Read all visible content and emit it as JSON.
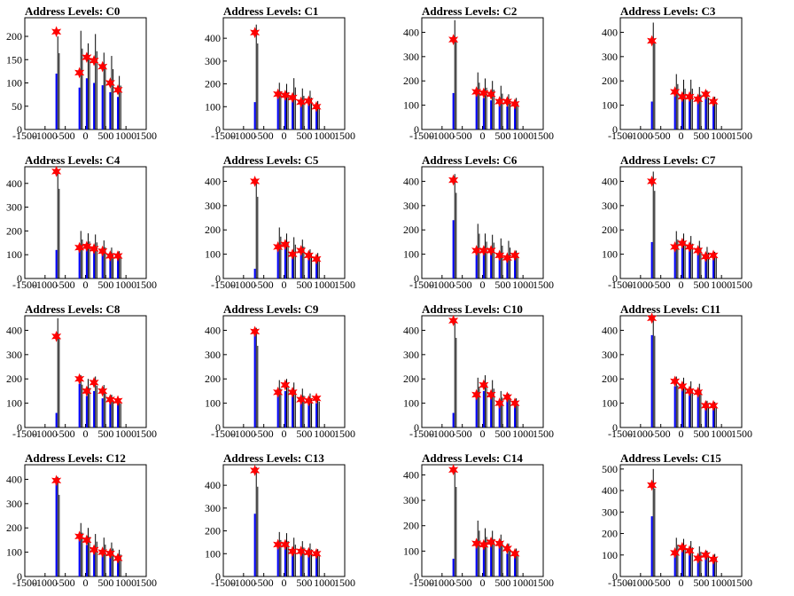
{
  "figure_title": "",
  "chart_data": [
    {
      "type": "bar",
      "title": "Address Levels: C0",
      "xlim": [
        -1500,
        1500
      ],
      "xticks": [
        -1500,
        -1000,
        -500,
        0,
        500,
        1000,
        1500
      ],
      "ymax": 240,
      "yticks": [
        0,
        50,
        100,
        150,
        200
      ],
      "peaks": [
        {
          "x": -720,
          "blue": 120,
          "black": 200,
          "star": 210
        },
        {
          "x": -150,
          "blue": 90,
          "black": 212,
          "star": 122
        },
        {
          "x": 30,
          "blue": 110,
          "black": 185,
          "star": 155
        },
        {
          "x": 210,
          "blue": 100,
          "black": 205,
          "star": 148
        },
        {
          "x": 420,
          "blue": 95,
          "black": 165,
          "star": 135
        },
        {
          "x": 610,
          "blue": 80,
          "black": 158,
          "star": 100
        },
        {
          "x": 800,
          "blue": 70,
          "black": 115,
          "star": 85
        }
      ]
    },
    {
      "type": "bar",
      "title": "Address Levels: C1",
      "xlim": [
        -1500,
        1500
      ],
      "xticks": [
        -1500,
        -1000,
        -500,
        0,
        500,
        1000,
        1500
      ],
      "ymax": 490,
      "yticks": [
        0,
        100,
        200,
        300,
        400
      ],
      "peaks": [
        {
          "x": -720,
          "blue": 120,
          "black": 460,
          "star": 425
        },
        {
          "x": -150,
          "blue": 140,
          "black": 205,
          "star": 155
        },
        {
          "x": 30,
          "blue": 135,
          "black": 200,
          "star": 150
        },
        {
          "x": 210,
          "blue": 130,
          "black": 225,
          "star": 140
        },
        {
          "x": 420,
          "blue": 110,
          "black": 180,
          "star": 120
        },
        {
          "x": 610,
          "blue": 115,
          "black": 170,
          "star": 125
        },
        {
          "x": 800,
          "blue": 90,
          "black": 125,
          "star": 100
        }
      ]
    },
    {
      "type": "bar",
      "title": "Address Levels: C2",
      "xlim": [
        -1500,
        1500
      ],
      "xticks": [
        -1500,
        -1000,
        -500,
        0,
        500,
        1000,
        1500
      ],
      "ymax": 460,
      "yticks": [
        0,
        100,
        200,
        300,
        400
      ],
      "peaks": [
        {
          "x": -720,
          "blue": 150,
          "black": 450,
          "star": 370
        },
        {
          "x": -150,
          "blue": 140,
          "black": 235,
          "star": 155
        },
        {
          "x": 30,
          "blue": 130,
          "black": 210,
          "star": 150
        },
        {
          "x": 210,
          "blue": 120,
          "black": 200,
          "star": 145
        },
        {
          "x": 420,
          "blue": 100,
          "black": 180,
          "star": 115
        },
        {
          "x": 610,
          "blue": 95,
          "black": 145,
          "star": 115
        },
        {
          "x": 800,
          "blue": 90,
          "black": 130,
          "star": 105
        }
      ]
    },
    {
      "type": "bar",
      "title": "Address Levels: C3",
      "xlim": [
        -1500,
        1500
      ],
      "xticks": [
        -1500,
        -1000,
        -500,
        0,
        500,
        1000,
        1500
      ],
      "ymax": 460,
      "yticks": [
        0,
        100,
        200,
        300,
        400
      ],
      "peaks": [
        {
          "x": -720,
          "blue": 115,
          "black": 440,
          "star": 365
        },
        {
          "x": -150,
          "blue": 140,
          "black": 228,
          "star": 155
        },
        {
          "x": 30,
          "blue": 130,
          "black": 205,
          "star": 135
        },
        {
          "x": 210,
          "blue": 125,
          "black": 205,
          "star": 135
        },
        {
          "x": 420,
          "blue": 120,
          "black": 175,
          "star": 125
        },
        {
          "x": 610,
          "blue": 130,
          "black": 160,
          "star": 145
        },
        {
          "x": 800,
          "blue": 100,
          "black": 135,
          "star": 115
        }
      ]
    },
    {
      "type": "bar",
      "title": "Address Levels: C4",
      "xlim": [
        -1500,
        1500
      ],
      "xticks": [
        -1500,
        -1000,
        -500,
        0,
        500,
        1000,
        1500
      ],
      "ymax": 470,
      "yticks": [
        0,
        100,
        200,
        300,
        400
      ],
      "peaks": [
        {
          "x": -720,
          "blue": 120,
          "black": 460,
          "star": 450
        },
        {
          "x": -150,
          "blue": 120,
          "black": 200,
          "star": 130
        },
        {
          "x": 30,
          "blue": 130,
          "black": 190,
          "star": 135
        },
        {
          "x": 210,
          "blue": 120,
          "black": 185,
          "star": 125
        },
        {
          "x": 420,
          "blue": 110,
          "black": 160,
          "star": 115
        },
        {
          "x": 610,
          "blue": 80,
          "black": 130,
          "star": 95
        },
        {
          "x": 800,
          "blue": 85,
          "black": 115,
          "star": 95
        }
      ]
    },
    {
      "type": "bar",
      "title": "Address Levels: C5",
      "xlim": [
        -1500,
        1500
      ],
      "xticks": [
        -1500,
        -1000,
        -500,
        0,
        500,
        1000,
        1500
      ],
      "ymax": 460,
      "yticks": [
        0,
        100,
        200,
        300,
        400
      ],
      "peaks": [
        {
          "x": -720,
          "blue": 40,
          "black": 410,
          "star": 400
        },
        {
          "x": -150,
          "blue": 120,
          "black": 210,
          "star": 130
        },
        {
          "x": 30,
          "blue": 135,
          "black": 185,
          "star": 140
        },
        {
          "x": 210,
          "blue": 90,
          "black": 170,
          "star": 100
        },
        {
          "x": 420,
          "blue": 100,
          "black": 160,
          "star": 115
        },
        {
          "x": 610,
          "blue": 80,
          "black": 120,
          "star": 95
        },
        {
          "x": 800,
          "blue": 75,
          "black": 105,
          "star": 80
        }
      ]
    },
    {
      "type": "bar",
      "title": "Address Levels: C6",
      "xlim": [
        -1500,
        1500
      ],
      "xticks": [
        -1500,
        -1000,
        -500,
        0,
        500,
        1000,
        1500
      ],
      "ymax": 460,
      "yticks": [
        0,
        100,
        200,
        300,
        400
      ],
      "peaks": [
        {
          "x": -720,
          "blue": 240,
          "black": 430,
          "star": 405
        },
        {
          "x": -150,
          "blue": 100,
          "black": 225,
          "star": 115
        },
        {
          "x": 30,
          "blue": 110,
          "black": 185,
          "star": 115
        },
        {
          "x": 210,
          "blue": 100,
          "black": 180,
          "star": 115
        },
        {
          "x": 420,
          "blue": 80,
          "black": 165,
          "star": 95
        },
        {
          "x": 610,
          "blue": 75,
          "black": 155,
          "star": 85
        },
        {
          "x": 800,
          "blue": 80,
          "black": 115,
          "star": 95
        }
      ]
    },
    {
      "type": "bar",
      "title": "Address Levels: C7",
      "xlim": [
        -1500,
        1500
      ],
      "xticks": [
        -1500,
        -1000,
        -500,
        0,
        500,
        1000,
        1500
      ],
      "ymax": 460,
      "yticks": [
        0,
        100,
        200,
        300,
        400
      ],
      "peaks": [
        {
          "x": -720,
          "blue": 150,
          "black": 440,
          "star": 400
        },
        {
          "x": -150,
          "blue": 120,
          "black": 195,
          "star": 130
        },
        {
          "x": 30,
          "blue": 130,
          "black": 185,
          "star": 145
        },
        {
          "x": 210,
          "blue": 120,
          "black": 175,
          "star": 130
        },
        {
          "x": 420,
          "blue": 100,
          "black": 155,
          "star": 115
        },
        {
          "x": 610,
          "blue": 80,
          "black": 130,
          "star": 90
        },
        {
          "x": 800,
          "blue": 80,
          "black": 110,
          "star": 95
        }
      ]
    },
    {
      "type": "bar",
      "title": "Address Levels: C8",
      "xlim": [
        -1500,
        1500
      ],
      "xticks": [
        -1500,
        -1000,
        -500,
        0,
        500,
        1000,
        1500
      ],
      "ymax": 460,
      "yticks": [
        0,
        100,
        200,
        300,
        400
      ],
      "peaks": [
        {
          "x": -720,
          "blue": 60,
          "black": 450,
          "star": 375
        },
        {
          "x": -150,
          "blue": 180,
          "black": 215,
          "star": 200
        },
        {
          "x": 30,
          "blue": 130,
          "black": 200,
          "star": 150
        },
        {
          "x": 210,
          "blue": 150,
          "black": 210,
          "star": 185
        },
        {
          "x": 420,
          "blue": 120,
          "black": 175,
          "star": 150
        },
        {
          "x": 610,
          "blue": 100,
          "black": 135,
          "star": 115
        },
        {
          "x": 800,
          "blue": 95,
          "black": 120,
          "star": 110
        }
      ]
    },
    {
      "type": "bar",
      "title": "Address Levels: C9",
      "xlim": [
        -1500,
        1500
      ],
      "xticks": [
        -1500,
        -1000,
        -500,
        0,
        500,
        1000,
        1500
      ],
      "ymax": 460,
      "yticks": [
        0,
        100,
        200,
        300,
        400
      ],
      "peaks": [
        {
          "x": -720,
          "blue": 400,
          "black": 410,
          "star": 395
        },
        {
          "x": -150,
          "blue": 130,
          "black": 195,
          "star": 145
        },
        {
          "x": 30,
          "blue": 150,
          "black": 200,
          "star": 175
        },
        {
          "x": 210,
          "blue": 130,
          "black": 185,
          "star": 145
        },
        {
          "x": 420,
          "blue": 100,
          "black": 160,
          "star": 115
        },
        {
          "x": 610,
          "blue": 100,
          "black": 140,
          "star": 110
        },
        {
          "x": 800,
          "blue": 100,
          "black": 130,
          "star": 120
        }
      ]
    },
    {
      "type": "bar",
      "title": "Address Levels: C10",
      "xlim": [
        -1500,
        1500
      ],
      "xticks": [
        -1500,
        -1000,
        -500,
        0,
        500,
        1000,
        1500
      ],
      "ymax": 460,
      "yticks": [
        0,
        100,
        200,
        300,
        400
      ],
      "peaks": [
        {
          "x": -720,
          "blue": 60,
          "black": 450,
          "star": 440
        },
        {
          "x": -150,
          "blue": 120,
          "black": 205,
          "star": 135
        },
        {
          "x": 30,
          "blue": 150,
          "black": 215,
          "star": 175
        },
        {
          "x": 210,
          "blue": 120,
          "black": 195,
          "star": 135
        },
        {
          "x": 420,
          "blue": 90,
          "black": 150,
          "star": 100
        },
        {
          "x": 610,
          "blue": 110,
          "black": 140,
          "star": 125
        },
        {
          "x": 800,
          "blue": 90,
          "black": 120,
          "star": 100
        }
      ]
    },
    {
      "type": "bar",
      "title": "Address Levels: C11",
      "xlim": [
        -1500,
        1500
      ],
      "xticks": [
        -1500,
        -1000,
        -500,
        0,
        500,
        1000,
        1500
      ],
      "ymax": 460,
      "yticks": [
        0,
        100,
        200,
        300,
        400
      ],
      "peaks": [
        {
          "x": -720,
          "blue": 380,
          "black": 460,
          "star": 450
        },
        {
          "x": -150,
          "blue": 170,
          "black": 210,
          "star": 190
        },
        {
          "x": 30,
          "blue": 160,
          "black": 205,
          "star": 170
        },
        {
          "x": 210,
          "blue": 140,
          "black": 190,
          "star": 150
        },
        {
          "x": 420,
          "blue": 130,
          "black": 180,
          "star": 145
        },
        {
          "x": 610,
          "blue": 80,
          "black": 110,
          "star": 90
        },
        {
          "x": 800,
          "blue": 80,
          "black": 105,
          "star": 90
        }
      ]
    },
    {
      "type": "bar",
      "title": "Address Levels: C12",
      "xlim": [
        -1500,
        1500
      ],
      "xticks": [
        -1500,
        -1000,
        -500,
        0,
        500,
        1000,
        1500
      ],
      "ymax": 460,
      "yticks": [
        0,
        100,
        200,
        300,
        400
      ],
      "peaks": [
        {
          "x": -720,
          "blue": 395,
          "black": 410,
          "star": 395
        },
        {
          "x": -150,
          "blue": 150,
          "black": 220,
          "star": 165
        },
        {
          "x": 30,
          "blue": 130,
          "black": 200,
          "star": 150
        },
        {
          "x": 210,
          "blue": 95,
          "black": 175,
          "star": 110
        },
        {
          "x": 420,
          "blue": 95,
          "black": 160,
          "star": 100
        },
        {
          "x": 610,
          "blue": 80,
          "black": 140,
          "star": 95
        },
        {
          "x": 800,
          "blue": 70,
          "black": 110,
          "star": 75
        }
      ]
    },
    {
      "type": "bar",
      "title": "Address Levels: C13",
      "xlim": [
        -1500,
        1500
      ],
      "xticks": [
        -1500,
        -1000,
        -500,
        0,
        500,
        1000,
        1500
      ],
      "ymax": 490,
      "yticks": [
        0,
        100,
        200,
        300,
        400
      ],
      "peaks": [
        {
          "x": -720,
          "blue": 275,
          "black": 480,
          "star": 465
        },
        {
          "x": -150,
          "blue": 130,
          "black": 195,
          "star": 140
        },
        {
          "x": 30,
          "blue": 130,
          "black": 190,
          "star": 140
        },
        {
          "x": 210,
          "blue": 100,
          "black": 170,
          "star": 110
        },
        {
          "x": 420,
          "blue": 100,
          "black": 155,
          "star": 110
        },
        {
          "x": 610,
          "blue": 90,
          "black": 145,
          "star": 105
        },
        {
          "x": 800,
          "blue": 90,
          "black": 120,
          "star": 100
        }
      ]
    },
    {
      "type": "bar",
      "title": "Address Levels: C14",
      "xlim": [
        -1500,
        1500
      ],
      "xticks": [
        -1500,
        -1000,
        -500,
        0,
        500,
        1000,
        1500
      ],
      "ymax": 440,
      "yticks": [
        0,
        100,
        200,
        300,
        400
      ],
      "peaks": [
        {
          "x": -720,
          "blue": 70,
          "black": 430,
          "star": 420
        },
        {
          "x": -150,
          "blue": 115,
          "black": 220,
          "star": 130
        },
        {
          "x": 30,
          "blue": 110,
          "black": 190,
          "star": 125
        },
        {
          "x": 210,
          "blue": 120,
          "black": 180,
          "star": 135
        },
        {
          "x": 420,
          "blue": 120,
          "black": 165,
          "star": 130
        },
        {
          "x": 610,
          "blue": 90,
          "black": 130,
          "star": 110
        },
        {
          "x": 800,
          "blue": 80,
          "black": 110,
          "star": 90
        }
      ]
    },
    {
      "type": "bar",
      "title": "Address Levels: C15",
      "xlim": [
        -1500,
        1500
      ],
      "xticks": [
        -1500,
        -1000,
        -500,
        0,
        500,
        1000,
        1500
      ],
      "ymax": 520,
      "yticks": [
        0,
        100,
        200,
        300,
        400,
        500
      ],
      "peaks": [
        {
          "x": -720,
          "blue": 280,
          "black": 500,
          "star": 425
        },
        {
          "x": -150,
          "blue": 100,
          "black": 180,
          "star": 110
        },
        {
          "x": 30,
          "blue": 120,
          "black": 175,
          "star": 135
        },
        {
          "x": 210,
          "blue": 110,
          "black": 165,
          "star": 120
        },
        {
          "x": 420,
          "blue": 80,
          "black": 140,
          "star": 85
        },
        {
          "x": 610,
          "blue": 90,
          "black": 120,
          "star": 100
        },
        {
          "x": 800,
          "blue": 75,
          "black": 105,
          "star": 80
        }
      ]
    }
  ],
  "colors": {
    "blue_series": "#0000ff",
    "black_series": "#000000",
    "star_marker": "#ff0000"
  }
}
